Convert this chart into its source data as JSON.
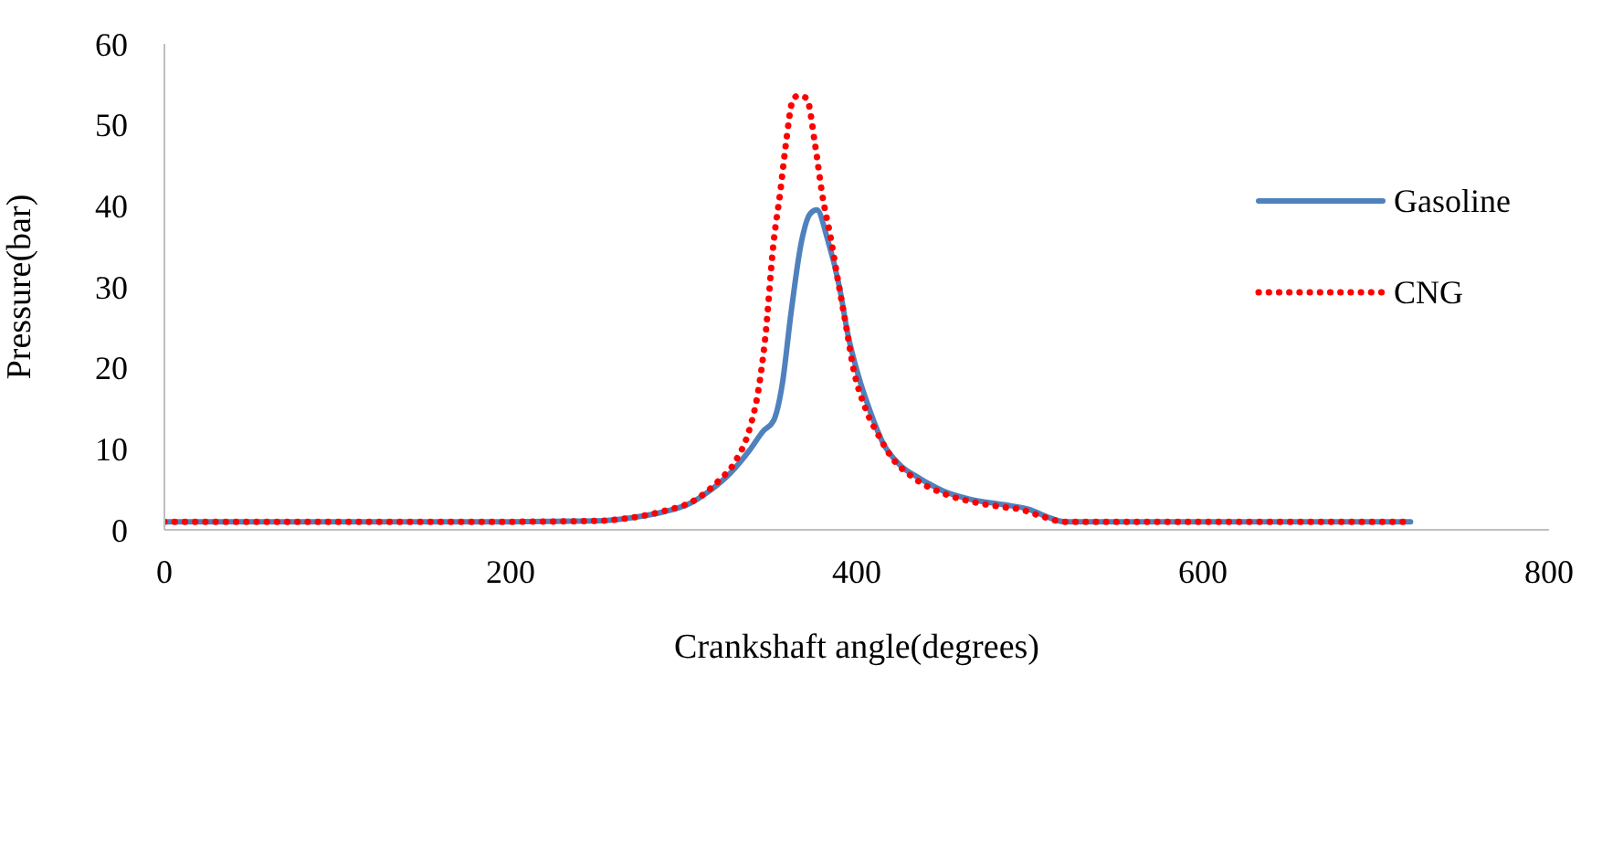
{
  "chart_data": {
    "type": "line",
    "xlabel": "Crankshaft angle(degrees)",
    "ylabel": "Pressure(bar)",
    "xlim": [
      0,
      800
    ],
    "xticks": [
      0,
      200,
      400,
      600,
      800
    ],
    "ylim": [
      0,
      60
    ],
    "yticks": [
      0,
      10,
      20,
      30,
      40,
      50,
      60
    ],
    "grid": false,
    "legend": "top right",
    "marker": "none",
    "series": [
      {
        "name": "Gasoline",
        "color": "#4f81bd",
        "line_style": "solid",
        "x": [
          0,
          100,
          200,
          250,
          270,
          290,
          302,
          315,
          327,
          338,
          346,
          352,
          357,
          362,
          368,
          373,
          377,
          383,
          390,
          395,
          401,
          408,
          415,
          425,
          436,
          450,
          465,
          485,
          500,
          510,
          520,
          600,
          720
        ],
        "values": [
          1,
          1,
          1,
          1.1,
          1.5,
          2.3,
          3.1,
          4.8,
          7,
          9.8,
          12.2,
          13.5,
          18,
          26.7,
          35.5,
          39,
          39.5,
          36,
          30,
          24,
          19,
          14.5,
          10.8,
          8,
          6.4,
          4.8,
          3.8,
          3.1,
          2.5,
          1.6,
          1,
          1,
          1
        ]
      },
      {
        "name": "CNG",
        "color": "#ff0000",
        "line_style": "dotted",
        "x": [
          0,
          100,
          200,
          250,
          270,
          290,
          305,
          320,
          330,
          338,
          343,
          347,
          352,
          356,
          359,
          363,
          366,
          371,
          376,
          380,
          385,
          389,
          394,
          398,
          405,
          412,
          420,
          433,
          450,
          468,
          485,
          495,
          505,
          520,
          600,
          720
        ],
        "values": [
          1,
          1,
          1,
          1.1,
          1.5,
          2.4,
          3.5,
          6,
          8.5,
          12.4,
          17,
          23.4,
          35.5,
          42,
          47.5,
          53,
          53.6,
          53.3,
          47.5,
          41.5,
          36,
          31,
          25,
          20,
          15,
          11.9,
          9,
          6.4,
          4.5,
          3.4,
          2.8,
          2.5,
          1.8,
          1,
          1,
          1
        ]
      }
    ]
  }
}
